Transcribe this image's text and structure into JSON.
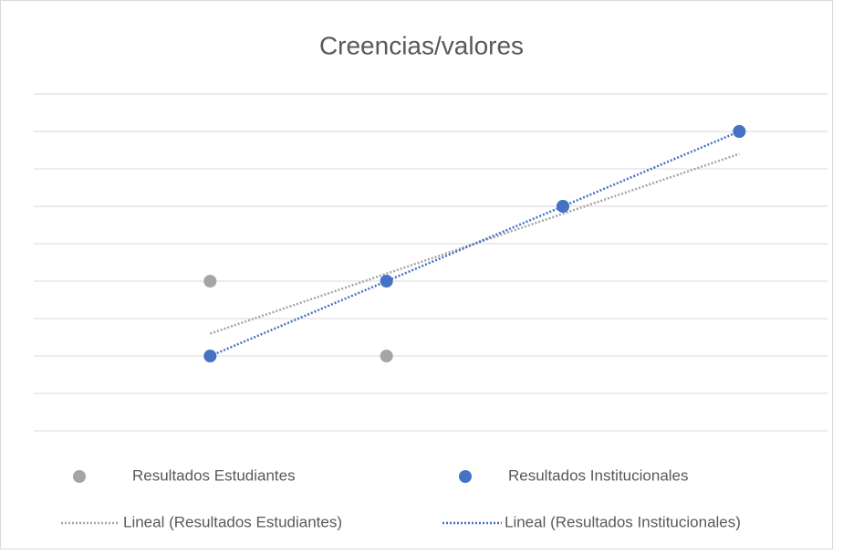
{
  "chart_data": {
    "type": "scatter",
    "title": "Creencias/valores",
    "x": [
      1,
      2,
      3,
      4
    ],
    "series": [
      {
        "name": "Resultados Estudiantes",
        "color": "#a5a5a5",
        "values": [
          4,
          2,
          6,
          8
        ],
        "trendline_name": "Lineal (Resultados Estudiantes)"
      },
      {
        "name": "Resultados Institucionales",
        "color": "#4472c4",
        "values": [
          2,
          4,
          6,
          8
        ],
        "trendline_name": "Lineal (Resultados Institucionales)"
      }
    ],
    "xlim": [
      0,
      4.5
    ],
    "ylim": [
      0,
      9
    ],
    "yticks": [
      0,
      1,
      2,
      3,
      4,
      5,
      6,
      7,
      8,
      9
    ],
    "grid": true,
    "legend": "bottom"
  }
}
